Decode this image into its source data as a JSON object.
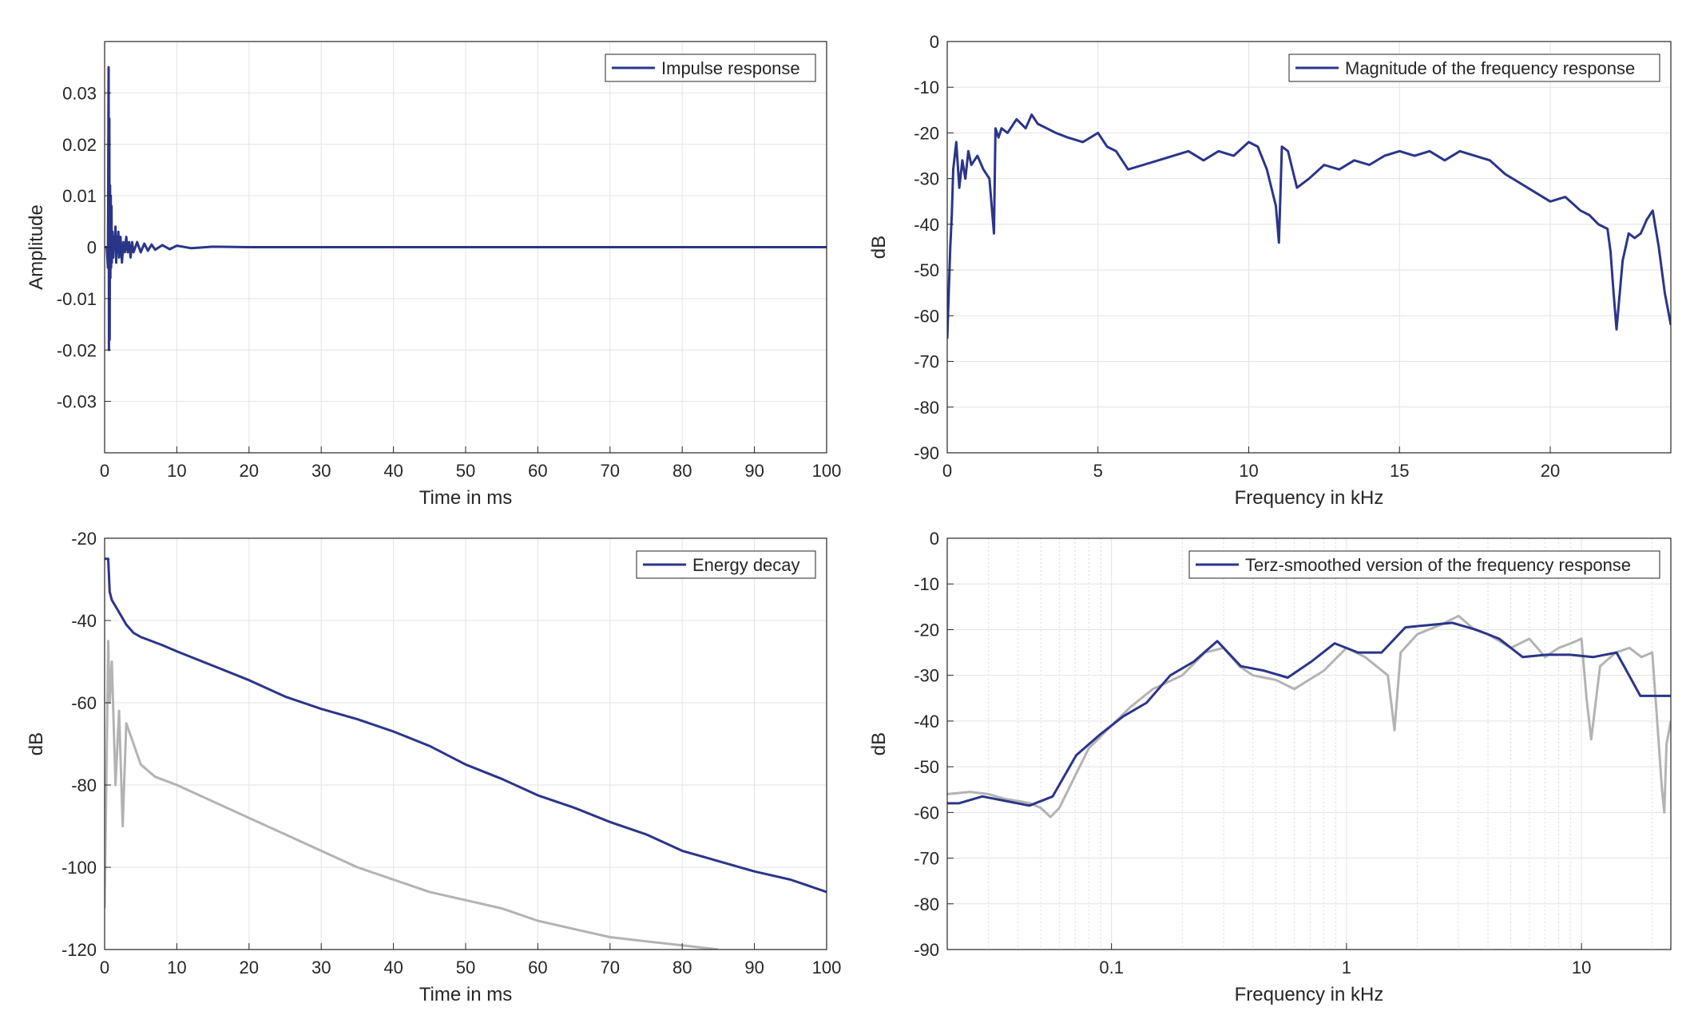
{
  "chart_data": [
    {
      "type": "line",
      "id": "impulse",
      "xlabel": "Time in ms",
      "ylabel": "Amplitude",
      "xlim": [
        0,
        100
      ],
      "ylim": [
        -0.04,
        0.04
      ],
      "xticks": [
        0,
        10,
        20,
        30,
        40,
        50,
        60,
        70,
        80,
        90,
        100
      ],
      "xticklabels": [
        "0",
        "10",
        "20",
        "30",
        "40",
        "50",
        "60",
        "70",
        "80",
        "90",
        "100"
      ],
      "yticks": [
        0.03,
        0.02,
        0.01,
        0,
        -0.01,
        -0.02,
        -0.03
      ],
      "yticklabels": [
        "0.03",
        "0.02",
        "0.01",
        "0",
        "-0.01",
        "-0.02",
        "-0.03"
      ],
      "grid": true,
      "legend_position": "top-right",
      "series": [
        {
          "name": "Impulse response",
          "color": "#2b3588",
          "x": [
            0,
            0.3,
            0.45,
            0.55,
            0.6,
            0.65,
            0.7,
            0.75,
            0.8,
            0.85,
            0.9,
            0.95,
            1.0,
            1.1,
            1.2,
            1.3,
            1.4,
            1.5,
            1.6,
            1.7,
            1.8,
            1.9,
            2.0,
            2.2,
            2.4,
            2.6,
            2.8,
            3.0,
            3.2,
            3.4,
            3.6,
            3.8,
            4.0,
            4.5,
            5,
            5.5,
            6,
            6.5,
            7,
            8,
            9,
            10,
            12,
            15,
            20,
            30,
            50,
            100
          ],
          "y": [
            0,
            0,
            -0.004,
            0.035,
            -0.02,
            0.025,
            -0.018,
            0.012,
            -0.006,
            0.01,
            -0.004,
            0.008,
            -0.003,
            0.003,
            -0.002,
            0.002,
            0.0,
            0.004,
            -0.003,
            0.002,
            -0.001,
            0.003,
            -0.002,
            0.002,
            -0.003,
            0.001,
            -0.001,
            0.002,
            -0.001,
            0.001,
            -0.002,
            0.001,
            -0.001,
            0.001,
            -0.001,
            0.0007,
            -0.0007,
            0.0005,
            -0.0005,
            0.0004,
            -0.0004,
            0.0003,
            -0.0002,
            0.0001,
            0.0,
            0.0,
            0.0,
            0.0
          ]
        }
      ]
    },
    {
      "type": "line",
      "id": "magnitude",
      "xlabel": "Frequency in kHz",
      "ylabel": "dB",
      "xlim": [
        0,
        24
      ],
      "ylim": [
        -90,
        0
      ],
      "xticks": [
        0,
        5,
        10,
        15,
        20
      ],
      "xticklabels": [
        "0",
        "5",
        "10",
        "15",
        "20"
      ],
      "yticks": [
        0,
        -10,
        -20,
        -30,
        -40,
        -50,
        -60,
        -70,
        -80,
        -90
      ],
      "yticklabels": [
        "0",
        "-10",
        "-20",
        "-30",
        "-40",
        "-50",
        "-60",
        "-70",
        "-80",
        "-90"
      ],
      "grid": true,
      "legend_position": "top-right",
      "series": [
        {
          "name": "Magnitude of the frequency response",
          "color": "#2b3588",
          "x": [
            0,
            0.05,
            0.1,
            0.15,
            0.2,
            0.3,
            0.4,
            0.5,
            0.6,
            0.7,
            0.8,
            1.0,
            1.2,
            1.4,
            1.55,
            1.6,
            1.7,
            1.8,
            2.0,
            2.3,
            2.6,
            2.8,
            3.0,
            3.3,
            3.6,
            4.0,
            4.5,
            5.0,
            5.3,
            5.6,
            6.0,
            6.5,
            7.0,
            7.5,
            8.0,
            8.5,
            9.0,
            9.5,
            10.0,
            10.3,
            10.6,
            10.9,
            11.0,
            11.1,
            11.3,
            11.6,
            12.0,
            12.5,
            13.0,
            13.5,
            14.0,
            14.5,
            15.0,
            15.5,
            16.0,
            16.5,
            17.0,
            17.5,
            18.0,
            18.5,
            19.0,
            19.5,
            20.0,
            20.5,
            21.0,
            21.3,
            21.6,
            21.9,
            22.0,
            22.1,
            22.2,
            22.4,
            22.6,
            22.8,
            23.0,
            23.2,
            23.4,
            23.5,
            23.6,
            23.8,
            24.0
          ],
          "y": [
            -65,
            -55,
            -45,
            -38,
            -28,
            -22,
            -32,
            -26,
            -30,
            -24,
            -27,
            -25,
            -28,
            -30,
            -42,
            -19,
            -21,
            -19,
            -20,
            -17,
            -19,
            -16,
            -18,
            -19,
            -20,
            -21,
            -22,
            -20,
            -23,
            -24,
            -28,
            -27,
            -26,
            -25,
            -24,
            -26,
            -24,
            -25,
            -22,
            -23,
            -28,
            -36,
            -44,
            -23,
            -24,
            -32,
            -30,
            -27,
            -28,
            -26,
            -27,
            -25,
            -24,
            -25,
            -24,
            -26,
            -24,
            -25,
            -26,
            -29,
            -31,
            -33,
            -35,
            -34,
            -37,
            -38,
            -40,
            -41,
            -46,
            -55,
            -63,
            -48,
            -42,
            -43,
            -42,
            -39,
            -37,
            -41,
            -45,
            -55,
            -62
          ]
        }
      ]
    },
    {
      "type": "line",
      "id": "energy",
      "xlabel": "Time in ms",
      "ylabel": "dB",
      "xlim": [
        0,
        100
      ],
      "ylim": [
        -120,
        -20
      ],
      "xticks": [
        0,
        10,
        20,
        30,
        40,
        50,
        60,
        70,
        80,
        90,
        100
      ],
      "xticklabels": [
        "0",
        "10",
        "20",
        "30",
        "40",
        "50",
        "60",
        "70",
        "80",
        "90",
        "100"
      ],
      "yticks": [
        -20,
        -40,
        -60,
        -80,
        -100,
        -120
      ],
      "yticklabels": [
        "-20",
        "-40",
        "-60",
        "-80",
        "-100",
        "-120"
      ],
      "grid": true,
      "legend_position": "top-right",
      "series": [
        {
          "name": "Energy decay",
          "color": "#2b3588",
          "x": [
            0,
            0.5,
            0.7,
            1,
            2,
            3,
            4,
            5,
            8,
            10,
            15,
            20,
            25,
            30,
            35,
            40,
            45,
            50,
            55,
            60,
            65,
            70,
            75,
            80,
            85,
            90,
            95,
            100
          ],
          "y": [
            -25,
            -25,
            -33,
            -35,
            -38,
            -41,
            -43,
            -44,
            -46,
            -47.5,
            -51,
            -54.5,
            -58.5,
            -61.5,
            -64,
            -67,
            -70.5,
            -75,
            -78.5,
            -82.5,
            -85.5,
            -89,
            -92,
            -96,
            -98.5,
            -101,
            -103,
            -106
          ]
        },
        {
          "color": "#b3b3b3",
          "x": [
            0,
            0.5,
            0.7,
            1,
            1.5,
            2,
            2.5,
            3,
            4,
            5,
            7,
            10,
            15,
            20,
            25,
            30,
            35,
            40,
            45,
            50,
            55,
            60,
            65,
            70,
            75,
            80,
            85
          ],
          "y": [
            -110,
            -45,
            -60,
            -50,
            -80,
            -62,
            -90,
            -65,
            -70,
            -75,
            -78,
            -80,
            -84,
            -88,
            -92,
            -96,
            -100,
            -103,
            -106,
            -108,
            -110,
            -113,
            -115,
            -117,
            -118,
            -119,
            -120
          ]
        }
      ]
    },
    {
      "type": "line",
      "id": "terz",
      "xlabel": "Frequency in kHz",
      "ylabel": "dB",
      "xscale": "log",
      "xlim": [
        0.02,
        24
      ],
      "ylim": [
        -90,
        0
      ],
      "xticks": [
        0.1,
        1,
        10
      ],
      "xticklabels": [
        "0.1",
        "1",
        "10"
      ],
      "yticks": [
        0,
        -10,
        -20,
        -30,
        -40,
        -50,
        -60,
        -70,
        -80,
        -90
      ],
      "yticklabels": [
        "0",
        "-10",
        "-20",
        "-30",
        "-40",
        "-50",
        "-60",
        "-70",
        "-80",
        "-90"
      ],
      "grid": true,
      "legend_position": "top-right",
      "series": [
        {
          "name": "Terz-smoothed version of the frequency response",
          "color": "#2b3588",
          "x": [
            0.02,
            0.0224,
            0.0282,
            0.0355,
            0.0447,
            0.0562,
            0.0708,
            0.0891,
            0.112,
            0.141,
            0.178,
            0.224,
            0.282,
            0.355,
            0.447,
            0.562,
            0.708,
            0.891,
            1.12,
            1.41,
            1.78,
            2.24,
            2.82,
            3.55,
            4.47,
            5.62,
            7.08,
            8.91,
            11.2,
            14.1,
            17.8,
            22.4,
            24
          ],
          "y": [
            -58,
            -58,
            -56.5,
            -57.5,
            -58.5,
            -56.5,
            -47.5,
            -43,
            -39,
            -36,
            -30,
            -27,
            -22.5,
            -28,
            -29,
            -30.5,
            -27,
            -23,
            -25,
            -25,
            -19.5,
            -19,
            -18.5,
            -20,
            -22,
            -26,
            -25.5,
            -25.5,
            -26,
            -25,
            -34.5,
            -34.5,
            -34.5
          ]
        },
        {
          "color": "#b3b3b3",
          "x": [
            0.02,
            0.025,
            0.03,
            0.035,
            0.04,
            0.045,
            0.05,
            0.055,
            0.06,
            0.07,
            0.08,
            0.1,
            0.12,
            0.15,
            0.2,
            0.25,
            0.3,
            0.35,
            0.4,
            0.5,
            0.6,
            0.8,
            1.0,
            1.2,
            1.5,
            1.6,
            1.7,
            2.0,
            2.5,
            3.0,
            3.5,
            4.0,
            5.0,
            6.0,
            7.0,
            8.0,
            9.0,
            10.0,
            10.5,
            11.0,
            12.0,
            14.0,
            16.0,
            18.0,
            20.0,
            21.0,
            22.0,
            22.5,
            23.0,
            24.0
          ],
          "y": [
            -56,
            -55.5,
            -56,
            -57,
            -57.5,
            -58,
            -59,
            -61,
            -59,
            -52,
            -46,
            -41,
            -37,
            -33,
            -30,
            -25,
            -24,
            -28,
            -30,
            -31,
            -33,
            -29,
            -24,
            -26,
            -30,
            -42,
            -25,
            -21,
            -19,
            -17,
            -20,
            -21,
            -24,
            -22,
            -26,
            -24,
            -23,
            -22,
            -35,
            -44,
            -28,
            -25,
            -24,
            -26,
            -25,
            -40,
            -55,
            -60,
            -45,
            -40
          ]
        }
      ]
    }
  ]
}
